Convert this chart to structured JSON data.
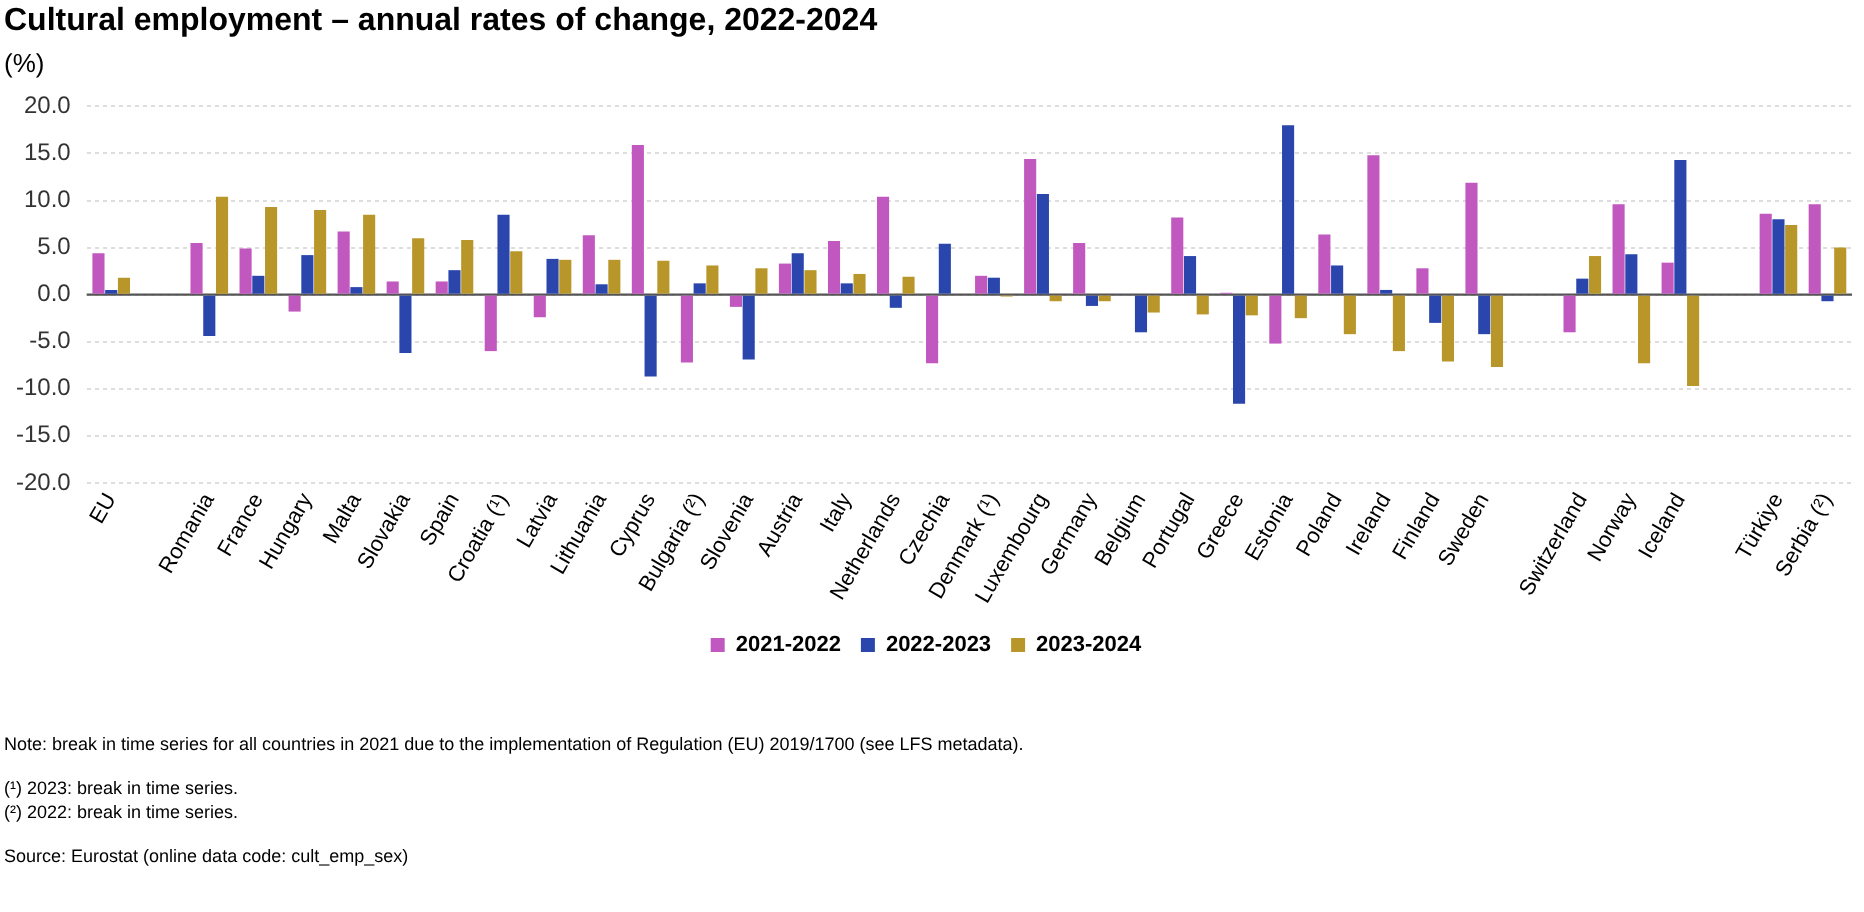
{
  "chart_data": {
    "type": "bar",
    "title": "Cultural employment – annual rates of change, 2022-2024",
    "ylabel": "(%)",
    "categories": [
      "EU",
      null,
      "Romania",
      "France",
      "Hungary",
      "Malta",
      "Slovakia",
      "Spain",
      "Croatia (¹)",
      "Latvia",
      "Lithuania",
      "Cyprus",
      "Bulgaria (²)",
      "Slovenia",
      "Austria",
      "Italy",
      "Netherlands",
      "Czechia",
      "Denmark (¹)",
      "Luxembourg",
      "Germany",
      "Belgium",
      "Portugal",
      "Greece",
      "Estonia",
      "Poland",
      "Ireland",
      "Finland",
      "Sweden",
      null,
      "Switzerland",
      "Norway",
      "Iceland",
      null,
      "Türkiye",
      "Serbia (²)"
    ],
    "series": [
      {
        "name": "2021-2022",
        "color": "#c058c0",
        "values": [
          4.4,
          null,
          5.5,
          4.9,
          -1.8,
          6.7,
          1.4,
          1.4,
          -6.0,
          -2.4,
          6.3,
          15.9,
          -7.2,
          -1.3,
          3.3,
          5.7,
          10.4,
          -7.3,
          2.0,
          14.4,
          5.5,
          -0.1,
          8.2,
          0.2,
          -5.2,
          6.4,
          14.8,
          2.8,
          11.9,
          null,
          -4.0,
          9.6,
          3.4,
          null,
          8.6,
          9.6
        ]
      },
      {
        "name": "2022-2023",
        "color": "#2a46ad",
        "values": [
          0.5,
          null,
          -4.4,
          2.0,
          4.2,
          0.8,
          -6.2,
          2.6,
          8.5,
          3.8,
          1.1,
          -8.7,
          1.2,
          -6.9,
          4.4,
          1.2,
          -1.4,
          5.4,
          1.8,
          10.7,
          -1.2,
          -4.0,
          4.1,
          -11.6,
          18.0,
          3.1,
          0.5,
          -3.0,
          -4.2,
          null,
          1.7,
          4.3,
          14.3,
          null,
          8.0,
          -0.7
        ]
      },
      {
        "name": "2023-2024",
        "color": "#b8962a",
        "values": [
          1.8,
          null,
          10.4,
          9.3,
          9.0,
          8.5,
          6.0,
          5.8,
          4.6,
          3.7,
          3.7,
          3.6,
          3.1,
          2.8,
          2.6,
          2.2,
          1.9,
          0.0,
          -0.2,
          -0.7,
          -0.7,
          -1.9,
          -2.1,
          -2.2,
          -2.5,
          -4.2,
          -6.0,
          -7.1,
          -7.7,
          null,
          4.1,
          -7.3,
          -9.7,
          null,
          7.4,
          5.0
        ]
      }
    ],
    "ylim": [
      -20,
      20
    ],
    "yticks": [
      {
        "value": -20,
        "label": "-20.0"
      },
      {
        "value": -15,
        "label": "-15.0"
      },
      {
        "value": -10,
        "label": "-10.0"
      },
      {
        "value": -5,
        "label": "-5.0"
      },
      {
        "value": 0,
        "label": "0.0"
      },
      {
        "value": 5,
        "label": "5.0"
      },
      {
        "value": 10,
        "label": "10.0"
      },
      {
        "value": 15,
        "label": "15.0"
      },
      {
        "value": 20,
        "label": "20.0"
      }
    ],
    "grid": "y",
    "legend": "bottom",
    "ref_lines": [
      {
        "axis": "y",
        "value": 0,
        "color": "#555555"
      }
    ],
    "annotations": [
      "Note: break in time series for all countries in 2021 due to the implementation  of Regulation  (EU) 2019/1700  (see LFS metadata).",
      "(¹) 2023: break in time series.",
      "(²) 2022: break in time series.",
      "Source: Eurostat (online data code: cult_emp_sex)"
    ]
  }
}
